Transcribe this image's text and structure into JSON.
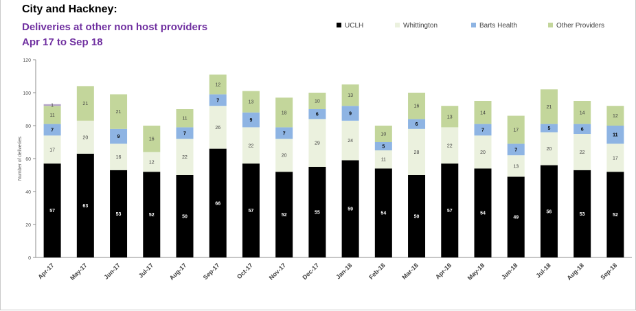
{
  "header": {
    "line1": "City and  Hackney:",
    "line2": "Deliveries at other non host providers",
    "line3": "Apr 17 to Sep 18"
  },
  "colors": {
    "UCLH": "#000000",
    "Whittington": "#ebf1de",
    "Barts Health": "#8eb4e3",
    "Other Providers": "#c3d69b"
  },
  "chart_data": {
    "type": "bar",
    "stacked": true,
    "title": "",
    "xlabel": "",
    "ylabel": "Number of deliveries",
    "ylim": [
      0,
      120
    ],
    "yticks": [
      0,
      20,
      40,
      60,
      80,
      100,
      120
    ],
    "grid": false,
    "legend_position": "top-right",
    "categories": [
      "Apr-17",
      "May-17",
      "Jun-17",
      "Jul-17",
      "Aug-17",
      "Sep-17",
      "Oct-17",
      "Nov-17",
      "Dec-17",
      "Jan-18",
      "Feb-18",
      "Mar-18",
      "Apr-18",
      "May-18",
      "Jun-18",
      "Jul-18",
      "Aug-18",
      "Sep-18"
    ],
    "series": [
      {
        "name": "UCLH",
        "values": [
          57,
          63,
          53,
          52,
          50,
          66,
          57,
          52,
          55,
          59,
          54,
          50,
          57,
          54,
          49,
          56,
          53,
          52
        ]
      },
      {
        "name": "Whittington",
        "values": [
          17,
          20,
          16,
          12,
          22,
          26,
          22,
          20,
          29,
          24,
          11,
          28,
          22,
          20,
          13,
          20,
          22,
          17
        ]
      },
      {
        "name": "Barts Health",
        "values": [
          7,
          null,
          9,
          null,
          7,
          7,
          9,
          7,
          6,
          9,
          5,
          6,
          null,
          7,
          7,
          5,
          6,
          11
        ]
      },
      {
        "name": "Other Providers",
        "values": [
          11,
          21,
          21,
          16,
          11,
          12,
          13,
          18,
          10,
          13,
          10,
          16,
          13,
          14,
          17,
          21,
          14,
          12
        ]
      },
      {
        "name": "",
        "values": [
          1,
          null,
          null,
          null,
          null,
          null,
          null,
          null,
          null,
          null,
          null,
          null,
          null,
          null,
          null,
          null,
          null,
          null
        ]
      }
    ]
  }
}
